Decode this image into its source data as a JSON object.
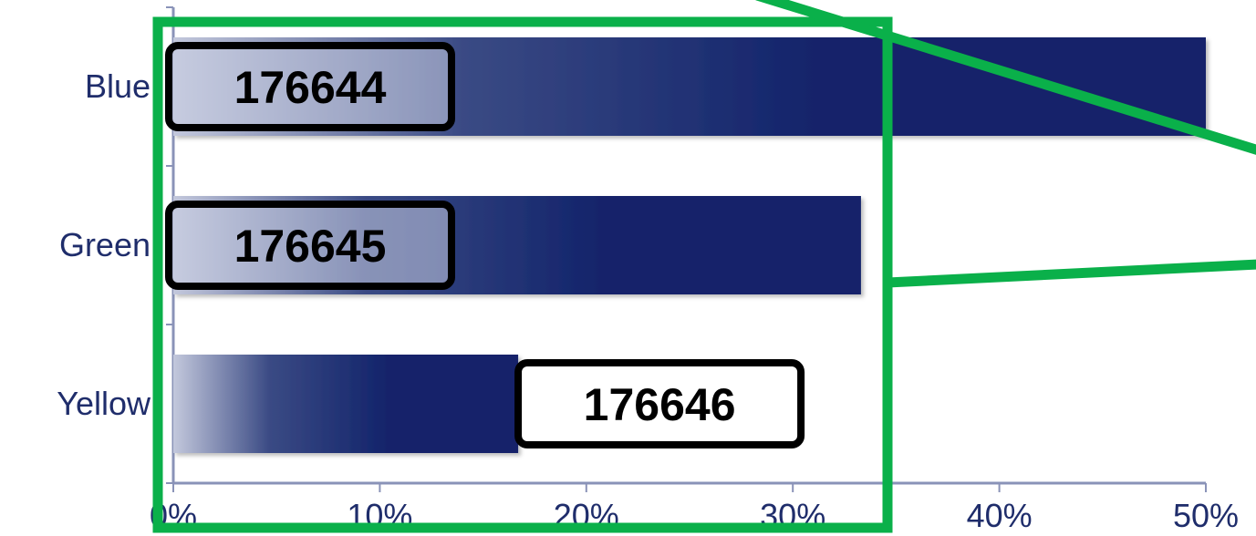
{
  "chart_data": {
    "type": "bar",
    "orientation": "horizontal",
    "title": "",
    "xlabel": "",
    "ylabel": "",
    "categories": [
      "Blue",
      "Green",
      "Yellow"
    ],
    "values": [
      50,
      33.3,
      16.7
    ],
    "data_labels": [
      "176644",
      "176645",
      "176646"
    ],
    "xlim": [
      0,
      50
    ],
    "x_ticks": [
      0,
      10,
      20,
      30,
      40,
      50
    ],
    "x_tick_labels": [
      "0%",
      "10%",
      "20%",
      "30%",
      "40%",
      "50%"
    ],
    "grid": false,
    "legend": "none",
    "colors": {
      "bar": "#13246b",
      "bar_gradient_start": "#c3c8dc",
      "axis": "#8a93b8",
      "text": "#1f2d6b",
      "highlight": "#0ab04a"
    }
  }
}
